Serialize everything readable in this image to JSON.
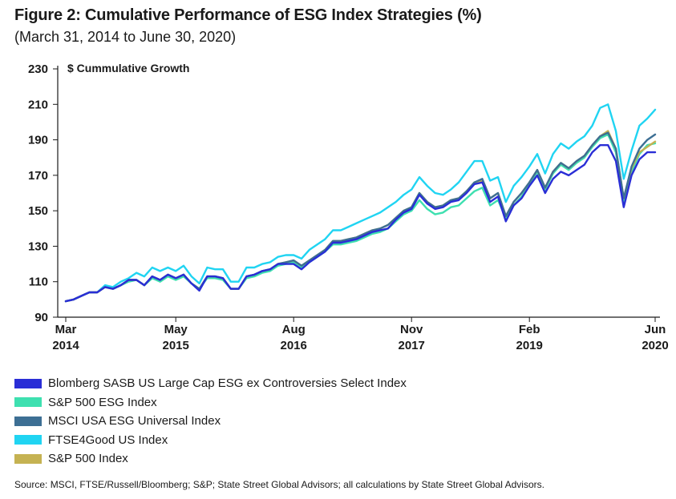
{
  "title": "Figure 2: Cumulative Performance of ESG Index Strategies (%)",
  "subtitle": "(March 31, 2014 to June 30, 2020)",
  "source": "Source: MSCI, FTSE/Russell/Bloomberg; S&P; State Street Global Advisors; all calculations by State Street Global Advisors.",
  "chart_data": {
    "type": "line",
    "ylabel": "$ Cummulative Growth",
    "ylim": [
      90,
      230
    ],
    "yticks": [
      90,
      110,
      130,
      150,
      170,
      190,
      210,
      230
    ],
    "xlim": [
      0,
      75
    ],
    "xticks": [
      {
        "pos": 0,
        "month": "Mar",
        "year": "2014"
      },
      {
        "pos": 14,
        "month": "May",
        "year": "2015"
      },
      {
        "pos": 29,
        "month": "Aug",
        "year": "2016"
      },
      {
        "pos": 44,
        "month": "Nov",
        "year": "2017"
      },
      {
        "pos": 59,
        "month": "Feb",
        "year": "2019"
      },
      {
        "pos": 75,
        "month": "Jun",
        "year": "2020"
      }
    ],
    "legend_position": "bottom",
    "grid": false,
    "series": [
      {
        "name": "Blomberg SASB US Large Cap ESG ex Controversies Select Index",
        "color": "#2a2ed6",
        "x": [
          0,
          1,
          2,
          3,
          4,
          5,
          6,
          7,
          8,
          9,
          10,
          11,
          12,
          13,
          14,
          15,
          16,
          17,
          18,
          19,
          20,
          21,
          22,
          23,
          24,
          25,
          26,
          27,
          28,
          29,
          30,
          31,
          32,
          33,
          34,
          35,
          36,
          37,
          38,
          39,
          40,
          41,
          42,
          43,
          44,
          45,
          46,
          47,
          48,
          49,
          50,
          51,
          52,
          53,
          54,
          55,
          56,
          57,
          58,
          59,
          60,
          61,
          62,
          63,
          64,
          65,
          66,
          67,
          68,
          69,
          70,
          71,
          72,
          73,
          74,
          75
        ],
        "y": [
          99,
          100,
          102,
          104,
          104,
          107,
          106,
          108,
          111,
          111,
          108,
          113,
          111,
          114,
          112,
          114,
          109,
          105,
          113,
          113,
          112,
          106,
          106,
          113,
          114,
          116,
          117,
          120,
          120,
          120,
          117,
          121,
          124,
          127,
          132,
          132,
          133,
          134,
          136,
          138,
          139,
          140,
          145,
          149,
          151,
          159,
          154,
          151,
          152,
          155,
          156,
          160,
          165,
          166,
          155,
          158,
          144,
          153,
          157,
          164,
          170,
          160,
          168,
          172,
          170,
          173,
          176,
          183,
          187,
          187,
          178,
          152,
          170,
          179,
          183,
          183
        ]
      },
      {
        "name": "S&P 500 ESG Index",
        "color": "#3ee0b0",
        "x": [
          0,
          1,
          2,
          3,
          4,
          5,
          6,
          7,
          8,
          9,
          10,
          11,
          12,
          13,
          14,
          15,
          16,
          17,
          18,
          19,
          20,
          21,
          22,
          23,
          24,
          25,
          26,
          27,
          28,
          29,
          30,
          31,
          32,
          33,
          34,
          35,
          36,
          37,
          38,
          39,
          40,
          41,
          42,
          43,
          44,
          45,
          46,
          47,
          48,
          49,
          50,
          51,
          52,
          53,
          54,
          55,
          56,
          57,
          58,
          59,
          60,
          61,
          62,
          63,
          64,
          65,
          66,
          67,
          68,
          69,
          70,
          71,
          72,
          73,
          74,
          75
        ],
        "y": [
          99,
          100,
          102,
          104,
          104,
          107,
          106,
          108,
          110,
          111,
          108,
          112,
          110,
          113,
          111,
          113,
          109,
          106,
          112,
          112,
          111,
          106,
          106,
          112,
          113,
          115,
          116,
          119,
          120,
          121,
          118,
          121,
          124,
          127,
          131,
          131,
          132,
          133,
          135,
          137,
          138,
          140,
          144,
          148,
          150,
          156,
          151,
          148,
          149,
          152,
          153,
          157,
          161,
          163,
          153,
          156,
          146,
          153,
          158,
          165,
          172,
          162,
          171,
          176,
          173,
          177,
          180,
          186,
          191,
          193,
          183,
          155,
          172,
          182,
          187,
          188
        ]
      },
      {
        "name": "MSCI USA ESG Universal Index",
        "color": "#3d6f94",
        "x": [
          0,
          1,
          2,
          3,
          4,
          5,
          6,
          7,
          8,
          9,
          10,
          11,
          12,
          13,
          14,
          15,
          16,
          17,
          18,
          19,
          20,
          21,
          22,
          23,
          24,
          25,
          26,
          27,
          28,
          29,
          30,
          31,
          32,
          33,
          34,
          35,
          36,
          37,
          38,
          39,
          40,
          41,
          42,
          43,
          44,
          45,
          46,
          47,
          48,
          49,
          50,
          51,
          52,
          53,
          54,
          55,
          56,
          57,
          58,
          59,
          60,
          61,
          62,
          63,
          64,
          65,
          66,
          67,
          68,
          69,
          70,
          71,
          72,
          73,
          74,
          75
        ],
        "y": [
          99,
          100,
          102,
          104,
          104,
          107,
          106,
          108,
          111,
          111,
          108,
          113,
          111,
          114,
          112,
          114,
          109,
          106,
          113,
          113,
          112,
          106,
          106,
          113,
          114,
          116,
          117,
          120,
          121,
          122,
          119,
          122,
          125,
          128,
          133,
          133,
          134,
          135,
          137,
          139,
          140,
          142,
          146,
          150,
          152,
          160,
          155,
          152,
          153,
          156,
          157,
          161,
          166,
          168,
          157,
          160,
          147,
          155,
          160,
          166,
          173,
          163,
          172,
          177,
          174,
          178,
          181,
          187,
          192,
          194,
          185,
          157,
          175,
          185,
          190,
          193
        ]
      },
      {
        "name": "FTSE4Good US Index",
        "color": "#20d4f2",
        "x": [
          0,
          1,
          2,
          3,
          4,
          5,
          6,
          7,
          8,
          9,
          10,
          11,
          12,
          13,
          14,
          15,
          16,
          17,
          18,
          19,
          20,
          21,
          22,
          23,
          24,
          25,
          26,
          27,
          28,
          29,
          30,
          31,
          32,
          33,
          34,
          35,
          36,
          37,
          38,
          39,
          40,
          41,
          42,
          43,
          44,
          45,
          46,
          47,
          48,
          49,
          50,
          51,
          52,
          53,
          54,
          55,
          56,
          57,
          58,
          59,
          60,
          61,
          62,
          63,
          64,
          65,
          66,
          67,
          68,
          69,
          70,
          71,
          72,
          73,
          74,
          75
        ],
        "y": [
          99,
          100,
          102,
          104,
          104,
          108,
          107,
          110,
          112,
          115,
          113,
          118,
          116,
          118,
          116,
          119,
          113,
          109,
          118,
          117,
          117,
          110,
          110,
          118,
          118,
          120,
          121,
          124,
          125,
          125,
          123,
          128,
          131,
          134,
          139,
          139,
          141,
          143,
          145,
          147,
          149,
          152,
          155,
          159,
          162,
          169,
          164,
          160,
          159,
          162,
          166,
          172,
          178,
          178,
          167,
          169,
          155,
          164,
          169,
          175,
          182,
          171,
          182,
          188,
          185,
          189,
          192,
          198,
          208,
          210,
          195,
          168,
          184,
          198,
          202,
          207
        ]
      },
      {
        "name": "S&P 500 Index",
        "color": "#c5b252",
        "x": [
          0,
          1,
          2,
          3,
          4,
          5,
          6,
          7,
          8,
          9,
          10,
          11,
          12,
          13,
          14,
          15,
          16,
          17,
          18,
          19,
          20,
          21,
          22,
          23,
          24,
          25,
          26,
          27,
          28,
          29,
          30,
          31,
          32,
          33,
          34,
          35,
          36,
          37,
          38,
          39,
          40,
          41,
          42,
          43,
          44,
          45,
          46,
          47,
          48,
          49,
          50,
          51,
          52,
          53,
          54,
          55,
          56,
          57,
          58,
          59,
          60,
          61,
          62,
          63,
          64,
          65,
          66,
          67,
          68,
          69,
          70,
          71,
          72,
          73,
          74,
          75
        ],
        "y": [
          99,
          100,
          102,
          104,
          104,
          107,
          106,
          108,
          111,
          111,
          108,
          113,
          111,
          114,
          112,
          114,
          109,
          106,
          113,
          113,
          112,
          106,
          106,
          113,
          114,
          116,
          117,
          120,
          121,
          122,
          119,
          122,
          125,
          128,
          133,
          133,
          134,
          135,
          137,
          139,
          140,
          142,
          146,
          150,
          152,
          160,
          155,
          152,
          153,
          156,
          157,
          161,
          166,
          167,
          157,
          160,
          147,
          155,
          160,
          166,
          173,
          163,
          172,
          177,
          174,
          178,
          181,
          187,
          192,
          195,
          185,
          157,
          174,
          183,
          186,
          189
        ]
      }
    ]
  }
}
